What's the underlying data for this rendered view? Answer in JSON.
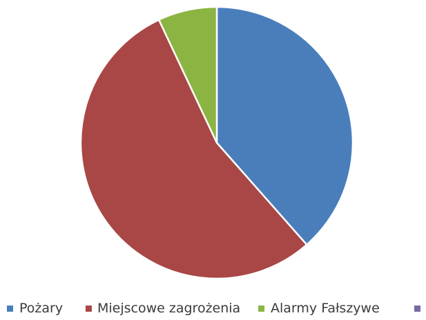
{
  "chart_data": {
    "type": "pie",
    "title": "",
    "legend_position": "bottom",
    "series": [
      {
        "name": "Pożary",
        "value": 38.5,
        "color": "#4a7ebb"
      },
      {
        "name": "Miejscowe zagrożenia",
        "value": 54.5,
        "color": "#a84745"
      },
      {
        "name": "Alarmy Fałszywe",
        "value": 7.0,
        "color": "#8cb443"
      },
      {
        "name": "",
        "value": 0,
        "color": "#7967a2"
      }
    ]
  }
}
